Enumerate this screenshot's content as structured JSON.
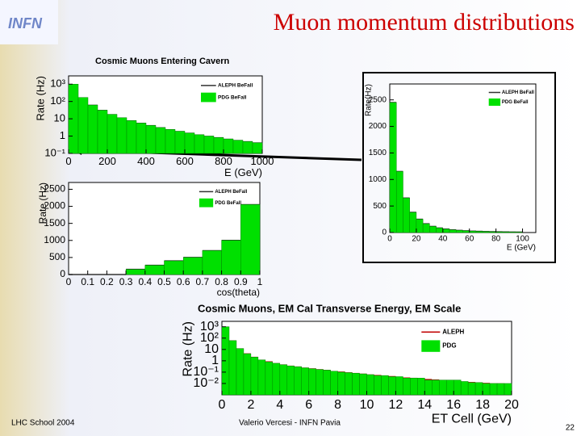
{
  "slide": {
    "title": "Muon momentum distributions",
    "logo": "INFN",
    "footer_left": "LHC School 2004",
    "footer_center": "Valerio Vercesi - INFN Pavia",
    "page": "22"
  },
  "chart_data": [
    {
      "type": "histogram",
      "title": "Cosmic Muons Entering Cavern",
      "xlabel": "E (GeV)",
      "ylabel": "Rate (Hz)",
      "log": true,
      "bins": [
        0,
        50,
        100,
        150,
        200,
        250,
        300,
        350,
        400,
        450,
        500,
        550,
        600,
        650,
        700,
        750,
        800,
        850,
        900,
        950,
        1000
      ],
      "series": [
        {
          "name": "ALEPH BeFall",
          "color": "#333333",
          "style": "line",
          "values": [
            900,
            160,
            60,
            30,
            17,
            11,
            7.5,
            5.4,
            4,
            3,
            2.3,
            1.8,
            1.45,
            1.15,
            0.95,
            0.8,
            0.65,
            0.55,
            0.47,
            0.4
          ]
        },
        {
          "name": "PDG BeFall",
          "color": "#00e000",
          "style": "fill",
          "values": [
            1000,
            170,
            62,
            31,
            18,
            11.5,
            7.8,
            5.6,
            4.1,
            3.1,
            2.4,
            1.9,
            1.5,
            1.2,
            1,
            0.82,
            0.68,
            0.57,
            0.48,
            0.41
          ]
        }
      ],
      "xlim": [
        0,
        1000
      ],
      "xticks": [
        0,
        200,
        400,
        600,
        800,
        1000
      ],
      "ylim": [
        0.1,
        3000
      ],
      "yticks": [
        {
          "value": 1000,
          "label": "10³"
        },
        {
          "value": 100,
          "label": "10²"
        },
        {
          "value": 10,
          "label": "10"
        },
        {
          "value": 1,
          "label": "1"
        },
        {
          "value": 0.1,
          "label": "10⁻¹"
        }
      ]
    },
    {
      "type": "histogram",
      "xlabel": "cos(theta)",
      "ylabel": "Rate (Hz)",
      "log": false,
      "bins": [
        0,
        0.1,
        0.2,
        0.3,
        0.4,
        0.5,
        0.6,
        0.7,
        0.8,
        0.9,
        1
      ],
      "series": [
        {
          "name": "ALEPH BeFall",
          "color": "#333333",
          "style": "line",
          "values": [
            0,
            0,
            0,
            150,
            270,
            400,
            500,
            700,
            1000,
            2050
          ]
        },
        {
          "name": "PDG BeFall",
          "color": "#00e000",
          "style": "fill",
          "values": [
            0,
            0,
            0,
            150,
            270,
            400,
            500,
            700,
            1000,
            2050
          ]
        }
      ],
      "xlim": [
        0,
        1
      ],
      "xticks": [
        0,
        0.1,
        0.2,
        0.3,
        0.4,
        0.5,
        0.6,
        0.7,
        0.8,
        0.9,
        1
      ],
      "ylim": [
        0,
        2700
      ],
      "yticks": [
        0,
        500,
        1000,
        1500,
        2000,
        2500
      ]
    },
    {
      "type": "histogram",
      "xlabel": "E (GeV)",
      "ylabel": "Rate(Hz)",
      "log": false,
      "bins": [
        0,
        5,
        10,
        15,
        20,
        25,
        30,
        35,
        40,
        45,
        50,
        55,
        60,
        65,
        70,
        75,
        80,
        85,
        90,
        95,
        100
      ],
      "series": [
        {
          "name": "ALEPH BeFall",
          "color": "#333333",
          "style": "line",
          "values": [
            2450,
            1150,
            650,
            380,
            250,
            165,
            115,
            85,
            65,
            50,
            40,
            32,
            26,
            22,
            18,
            15,
            13,
            11,
            9,
            8
          ]
        },
        {
          "name": "PDG BeFall",
          "color": "#00e000",
          "style": "fill",
          "values": [
            2450,
            1150,
            650,
            380,
            250,
            165,
            115,
            85,
            65,
            50,
            40,
            32,
            26,
            22,
            18,
            15,
            13,
            11,
            9,
            8
          ]
        }
      ],
      "xlim": [
        0,
        110
      ],
      "xticks": [
        0,
        20,
        40,
        60,
        80,
        100
      ],
      "ylim": [
        0,
        2800
      ],
      "yticks": [
        0,
        500,
        1000,
        1500,
        2000,
        2500
      ]
    },
    {
      "type": "histogram",
      "title": "Cosmic Muons, EM Cal Transverse Energy, EM Scale",
      "xlabel": "ET Cell (GeV)",
      "ylabel": "Rate (Hz)",
      "log": true,
      "bins": [
        0,
        0.5,
        1,
        1.5,
        2,
        2.5,
        3,
        3.5,
        4,
        4.5,
        5,
        5.5,
        6,
        6.5,
        7,
        7.5,
        8,
        8.5,
        9,
        9.5,
        10,
        10.5,
        11,
        11.5,
        12,
        12.5,
        13,
        13.5,
        14,
        14.5,
        15,
        15.5,
        16,
        16.5,
        17,
        17.5,
        18,
        18.5,
        19,
        19.5,
        20
      ],
      "series": [
        {
          "name": "ALEPH",
          "color": "#c00000",
          "style": "line",
          "values": [
            900,
            55,
            11,
            4,
            2,
            1.1,
            0.8,
            0.55,
            0.42,
            0.33,
            0.28,
            0.22,
            0.19,
            0.16,
            0.14,
            0.11,
            0.1,
            0.085,
            0.075,
            0.065,
            0.055,
            0.05,
            0.045,
            0.04,
            0.035,
            0.03,
            0.028,
            0.025,
            0.022,
            0.02,
            0.018,
            0.016,
            0.015,
            0.013,
            0.012,
            0.011,
            0.01,
            0.009,
            0.009,
            0.008
          ]
        },
        {
          "name": "PDG",
          "color": "#00e000",
          "style": "fill",
          "values": [
            1000,
            60,
            12,
            4.2,
            2.1,
            1.2,
            0.8,
            0.6,
            0.45,
            0.35,
            0.3,
            0.24,
            0.2,
            0.17,
            0.15,
            0.12,
            0.1,
            0.09,
            0.08,
            0.07,
            0.06,
            0.05,
            0.05,
            0.04,
            0.04,
            0.03,
            0.03,
            0.03,
            0.02,
            0.02,
            0.02,
            0.02,
            0.02,
            0.015,
            0.012,
            0.012,
            0.01,
            0.01,
            0.01,
            0.01
          ]
        }
      ],
      "xlim": [
        0,
        20
      ],
      "xticks": [
        0,
        2,
        4,
        6,
        8,
        10,
        12,
        14,
        16,
        18,
        20
      ],
      "ylim": [
        0.001,
        3000
      ],
      "yticks": [
        {
          "value": 1000,
          "label": "10³"
        },
        {
          "value": 100,
          "label": "10²"
        },
        {
          "value": 10,
          "label": "10"
        },
        {
          "value": 1,
          "label": "1"
        },
        {
          "value": 0.1,
          "label": "10⁻¹"
        },
        {
          "value": 0.01,
          "label": "10⁻²"
        }
      ]
    }
  ]
}
